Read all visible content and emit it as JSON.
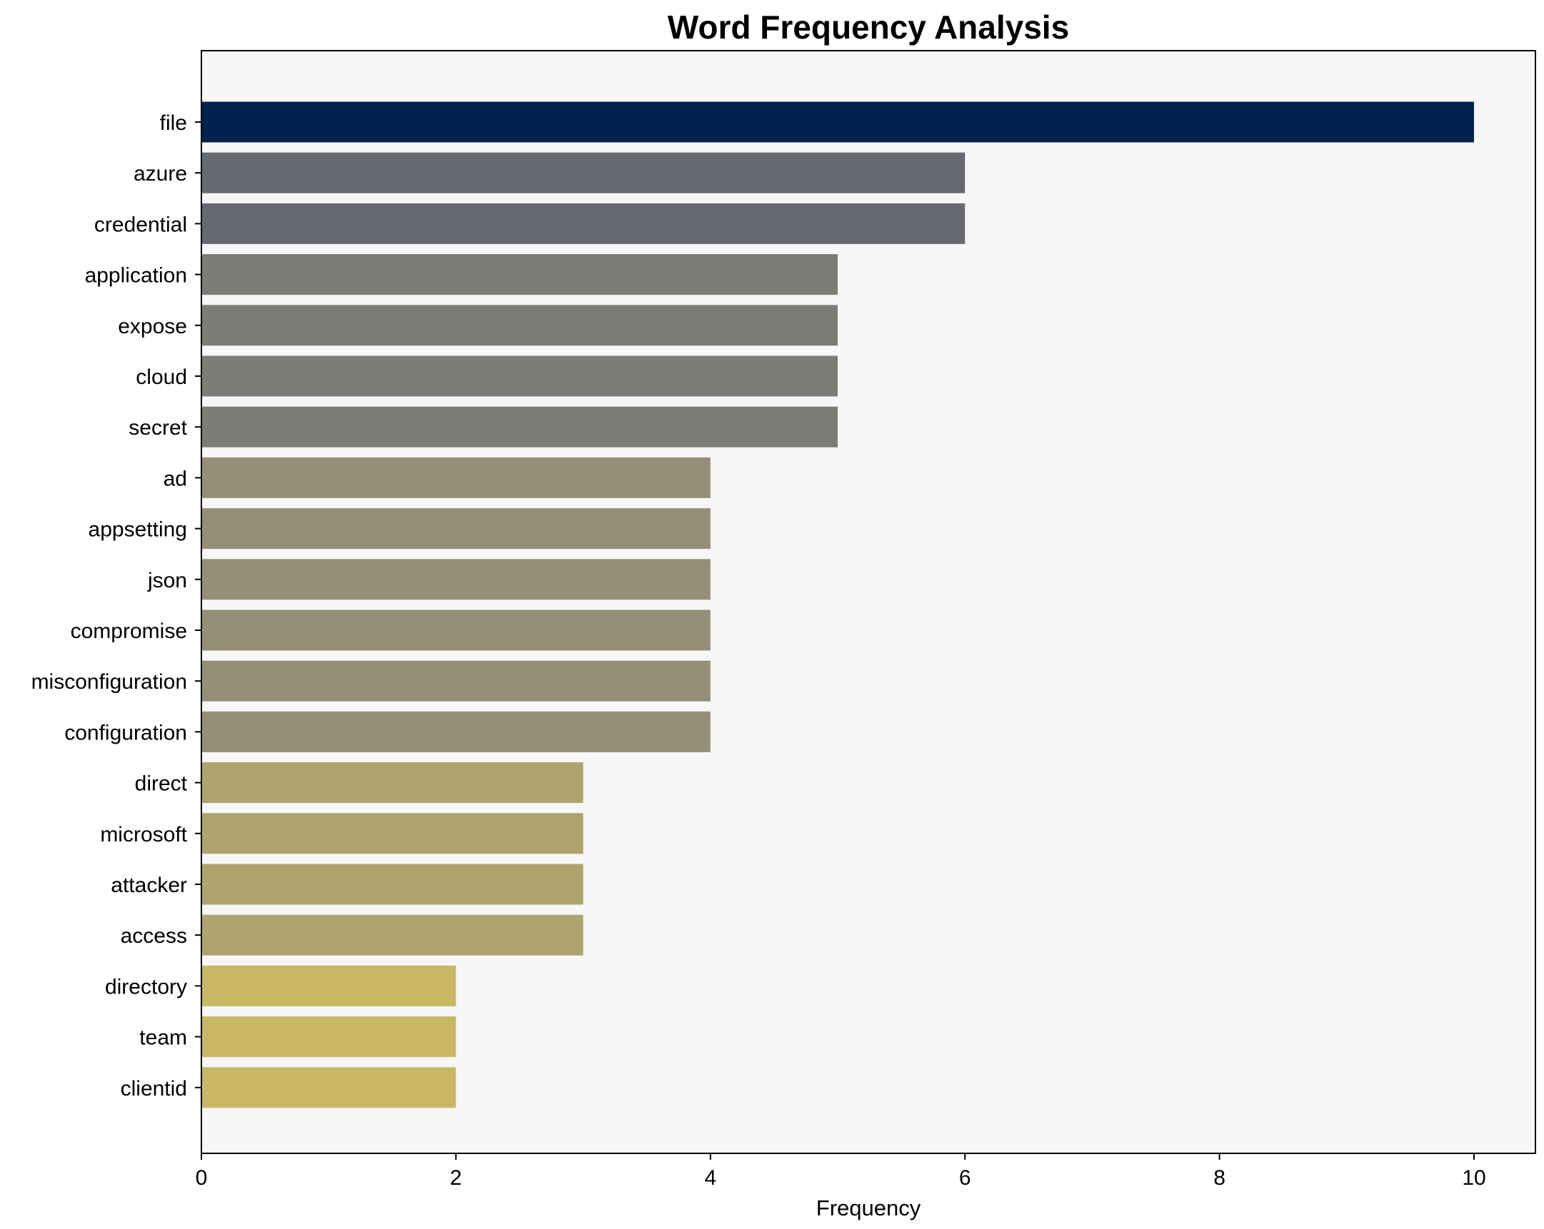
{
  "chart_data": {
    "type": "bar",
    "orientation": "horizontal",
    "title": "Word Frequency Analysis",
    "xlabel": "Frequency",
    "ylabel": "",
    "xlim": [
      0,
      10.5
    ],
    "xticks": [
      0,
      2,
      4,
      6,
      8,
      10
    ],
    "grid": false,
    "legend": "none",
    "background_color": "#f7f7f7",
    "categories": [
      "file",
      "azure",
      "credential",
      "application",
      "expose",
      "cloud",
      "secret",
      "ad",
      "appsetting",
      "json",
      "compromise",
      "misconfiguration",
      "configuration",
      "direct",
      "microsoft",
      "attacker",
      "access",
      "directory",
      "team",
      "clientid"
    ],
    "values": [
      10,
      6,
      6,
      5,
      5,
      5,
      5,
      4,
      4,
      4,
      4,
      4,
      4,
      3,
      3,
      3,
      3,
      2,
      2,
      2
    ],
    "value_colors": {
      "10": "#00224e",
      "6": "#666970",
      "5": "#7d7c78",
      "4": "#958f78",
      "3": "#afa36f",
      "2": "#c8b866"
    }
  }
}
